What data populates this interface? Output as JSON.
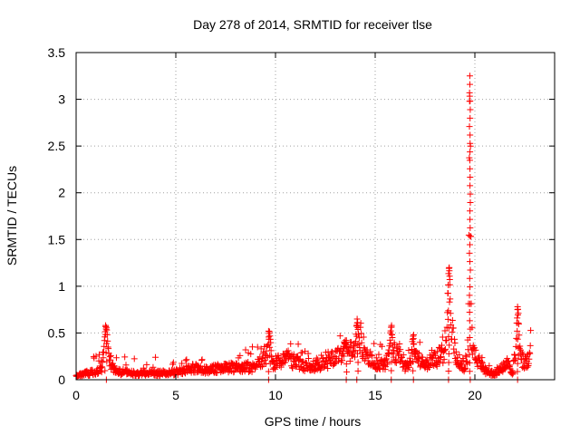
{
  "chart_data": {
    "type": "scatter",
    "title": "Day 278 of 2014, SRMTID for receiver tlse",
    "xlabel": "GPS time / hours",
    "ylabel": "SRMTID / TECUs",
    "xlim": [
      0,
      24
    ],
    "ylim": [
      0,
      3.5
    ],
    "x_ticks": [
      0,
      5,
      10,
      15,
      20
    ],
    "x_tick_labels": [
      "0",
      "5",
      "10",
      "15",
      "20"
    ],
    "y_ticks": [
      0,
      0.5,
      1,
      1.5,
      2,
      2.5,
      3,
      3.5
    ],
    "y_tick_labels": [
      "0",
      "0.5",
      "1",
      "1.5",
      "2",
      "2.5",
      "3",
      "3.5"
    ],
    "grid": true,
    "marker": "+",
    "series": [
      {
        "name": "SRMTID",
        "color": "#ff0000",
        "baseline": [
          [
            0.0,
            0.04
          ],
          [
            0.5,
            0.07
          ],
          [
            1.0,
            0.08
          ],
          [
            1.3,
            0.12
          ],
          [
            1.5,
            0.35
          ],
          [
            1.7,
            0.22
          ],
          [
            1.9,
            0.09
          ],
          [
            3.0,
            0.07
          ],
          [
            4.5,
            0.07
          ],
          [
            5.0,
            0.08
          ],
          [
            5.5,
            0.11
          ],
          [
            6.0,
            0.13
          ],
          [
            6.5,
            0.1
          ],
          [
            7.0,
            0.12
          ],
          [
            8.0,
            0.13
          ],
          [
            9.0,
            0.14
          ],
          [
            9.6,
            0.3
          ],
          [
            9.9,
            0.15
          ],
          [
            10.5,
            0.24
          ],
          [
            11.0,
            0.19
          ],
          [
            11.5,
            0.14
          ],
          [
            12.5,
            0.17
          ],
          [
            13.0,
            0.24
          ],
          [
            13.5,
            0.3
          ],
          [
            14.0,
            0.28
          ],
          [
            14.3,
            0.42
          ],
          [
            14.6,
            0.24
          ],
          [
            15.0,
            0.18
          ],
          [
            15.5,
            0.16
          ],
          [
            15.8,
            0.32
          ],
          [
            16.2,
            0.24
          ],
          [
            16.5,
            0.14
          ],
          [
            17.0,
            0.24
          ],
          [
            17.5,
            0.16
          ],
          [
            18.0,
            0.22
          ],
          [
            18.4,
            0.28
          ],
          [
            18.7,
            0.62
          ],
          [
            18.9,
            0.45
          ],
          [
            19.1,
            0.18
          ],
          [
            19.5,
            0.14
          ],
          [
            19.8,
            0.5
          ],
          [
            20.0,
            0.3
          ],
          [
            20.3,
            0.15
          ],
          [
            20.6,
            0.08
          ],
          [
            21.0,
            0.07
          ],
          [
            21.4,
            0.12
          ],
          [
            21.6,
            0.18
          ],
          [
            21.9,
            0.08
          ],
          [
            22.1,
            0.42
          ],
          [
            22.3,
            0.25
          ],
          [
            22.5,
            0.17
          ],
          [
            22.8,
            0.28
          ]
        ],
        "spikes": [
          {
            "x": 1.5,
            "peak": 0.58,
            "width": 0.15
          },
          {
            "x": 9.7,
            "peak": 0.52,
            "width": 0.12
          },
          {
            "x": 13.5,
            "peak": 0.42,
            "width": 0.2
          },
          {
            "x": 14.1,
            "peak": 0.65,
            "width": 0.12
          },
          {
            "x": 15.8,
            "peak": 0.58,
            "width": 0.12
          },
          {
            "x": 16.9,
            "peak": 0.48,
            "width": 0.1
          },
          {
            "x": 18.7,
            "peak": 1.2,
            "width": 0.12
          },
          {
            "x": 19.75,
            "peak": 3.25,
            "width": 0.06
          },
          {
            "x": 22.15,
            "peak": 0.78,
            "width": 0.1
          }
        ]
      }
    ]
  }
}
